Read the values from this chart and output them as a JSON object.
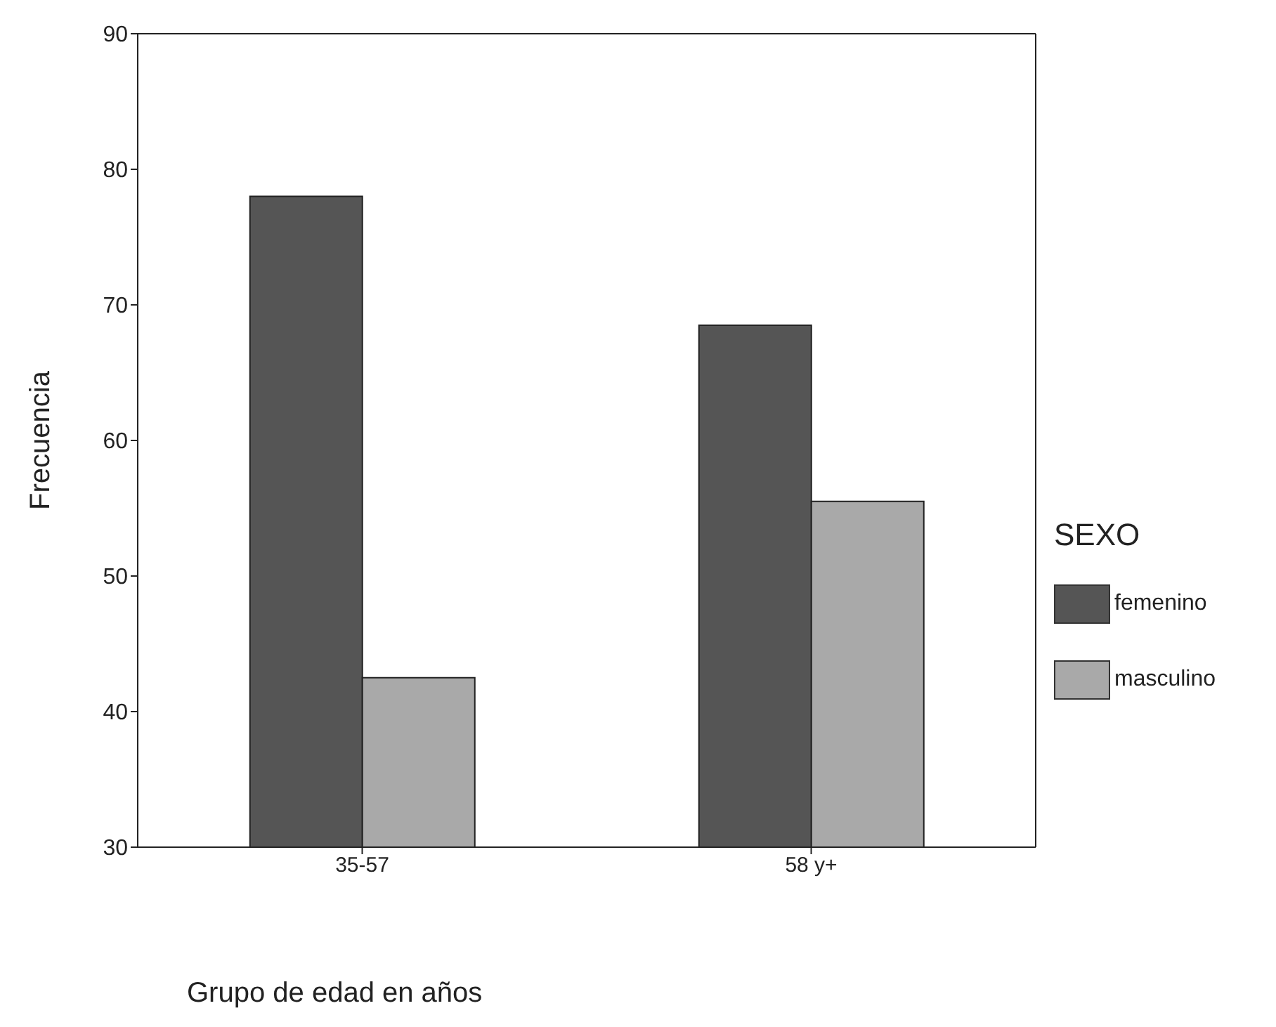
{
  "chart_data": {
    "type": "bar",
    "xlabel": "Grupo de edad en años",
    "ylabel": "Frecuencia",
    "legend_title": "SEXO",
    "legend": "right",
    "categories": [
      "35-57",
      "58 y+"
    ],
    "series": [
      {
        "name": "femenino",
        "color": "#555555",
        "values": [
          78,
          68.5
        ]
      },
      {
        "name": "masculino",
        "color": "#a9a9a9",
        "values": [
          42.5,
          55.5
        ]
      }
    ],
    "ylim": [
      30,
      90
    ],
    "yticks": [
      30,
      40,
      50,
      60,
      70,
      80,
      90
    ]
  }
}
